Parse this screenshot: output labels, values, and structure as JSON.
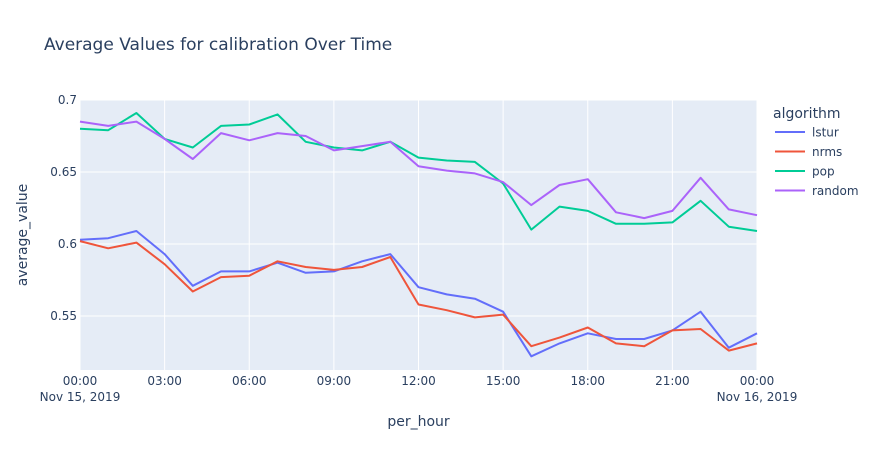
{
  "chart_data": {
    "type": "line",
    "title": "Average Values for calibration Over Time",
    "xlabel": "per_hour",
    "ylabel": "average_value",
    "x_ticks": [
      "00:00",
      "03:00",
      "06:00",
      "09:00",
      "12:00",
      "15:00",
      "18:00",
      "21:00",
      "00:00"
    ],
    "x_tick_dates": [
      "Nov 15, 2019",
      "Nov 16, 2019"
    ],
    "y_ticks": [
      "0.55",
      "0.6",
      "0.65",
      "0.7"
    ],
    "ylim": [
      0.5125,
      0.7
    ],
    "x_start": "2019-11-15 00:00",
    "x_end": "2019-11-16 00:00",
    "x": [
      "2019-11-15 00:00",
      "2019-11-15 01:00",
      "2019-11-15 02:00",
      "2019-11-15 03:00",
      "2019-11-15 04:00",
      "2019-11-15 05:00",
      "2019-11-15 06:00",
      "2019-11-15 07:00",
      "2019-11-15 08:00",
      "2019-11-15 09:00",
      "2019-11-15 10:00",
      "2019-11-15 11:00",
      "2019-11-15 12:00",
      "2019-11-15 13:00",
      "2019-11-15 14:00",
      "2019-11-15 15:00",
      "2019-11-15 16:00",
      "2019-11-15 17:00",
      "2019-11-15 18:00",
      "2019-11-15 19:00",
      "2019-11-15 20:00",
      "2019-11-15 21:00",
      "2019-11-15 22:00",
      "2019-11-15 23:00",
      "2019-11-16 00:00"
    ],
    "legend_title": "algorithm",
    "legend_position": "right",
    "grid": true,
    "plot_bg": "#e5ecf6",
    "series": [
      {
        "name": "lstur",
        "color": "#636efa",
        "values": [
          0.603,
          0.604,
          0.609,
          0.593,
          0.571,
          0.581,
          0.581,
          0.587,
          0.58,
          0.581,
          0.588,
          0.593,
          0.57,
          0.565,
          0.562,
          0.553,
          0.522,
          0.531,
          0.538,
          0.534,
          0.534,
          0.54,
          0.553,
          0.528,
          0.538
        ]
      },
      {
        "name": "nrms",
        "color": "#ef553b",
        "values": [
          0.602,
          0.597,
          0.601,
          0.586,
          0.567,
          0.577,
          0.578,
          0.588,
          0.584,
          0.582,
          0.584,
          0.591,
          0.558,
          0.554,
          0.549,
          0.551,
          0.529,
          0.535,
          0.542,
          0.531,
          0.529,
          0.54,
          0.541,
          0.526,
          0.531
        ]
      },
      {
        "name": "pop",
        "color": "#00cc96",
        "values": [
          0.68,
          0.679,
          0.691,
          0.673,
          0.667,
          0.682,
          0.683,
          0.69,
          0.671,
          0.667,
          0.665,
          0.671,
          0.66,
          0.658,
          0.657,
          0.642,
          0.61,
          0.626,
          0.623,
          0.614,
          0.614,
          0.615,
          0.63,
          0.612,
          0.609
        ]
      },
      {
        "name": "random",
        "color": "#ab63fa",
        "values": [
          0.685,
          0.682,
          0.685,
          0.673,
          0.659,
          0.677,
          0.672,
          0.677,
          0.675,
          0.665,
          0.668,
          0.671,
          0.654,
          0.651,
          0.649,
          0.643,
          0.627,
          0.641,
          0.645,
          0.622,
          0.618,
          0.623,
          0.646,
          0.624,
          0.62
        ]
      }
    ]
  }
}
